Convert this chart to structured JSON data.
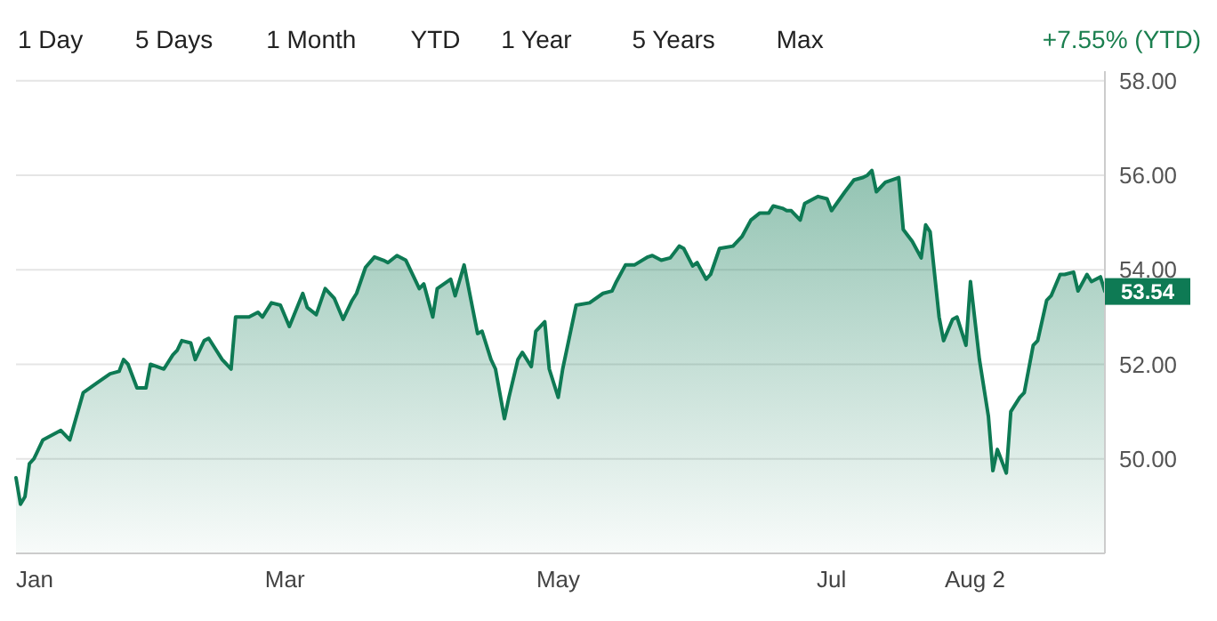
{
  "chart_data": {
    "type": "area",
    "xlim": [
      "--01-01",
      "--08-31"
    ],
    "ylim": [
      48,
      58.2
    ],
    "xticks": [
      {
        "value": "--01-01",
        "label": "Jan"
      },
      {
        "value": "--03-01",
        "label": "Mar"
      },
      {
        "value": "--05-01",
        "label": "May"
      },
      {
        "value": "--07-01",
        "label": "Jul"
      },
      {
        "value": "--08-02",
        "label": "Aug 2"
      }
    ],
    "yticks": [
      {
        "value": 50,
        "label": "50.00"
      },
      {
        "value": 52,
        "label": "52.00"
      },
      {
        "value": 54,
        "label": "54.00"
      },
      {
        "value": 56,
        "label": "56.00"
      },
      {
        "value": 58,
        "label": "58.00"
      }
    ],
    "grid": "y",
    "annotations": [
      "1 Day",
      "5 Days",
      "1 Month",
      "YTD",
      "1 Year",
      "5 Years",
      "Max",
      "+7.55% (YTD)",
      {
        "text": "53.54",
        "x": "--08-31",
        "y": 53.54
      }
    ],
    "series": [
      {
        "color": "#0e7a54",
        "x": [
          "--01-01",
          "--01-02",
          "--01-03",
          "--01-04",
          "--01-05",
          "--01-07",
          "--01-11",
          "--01-13",
          "--01-16",
          "--01-19",
          "--01-22",
          "--01-24",
          "--01-25",
          "--01-26",
          "--01-28",
          "--01-30",
          "--01-31",
          "--02-03",
          "--02-05",
          "--02-06",
          "--02-07",
          "--02-09",
          "--02-10",
          "--02-12",
          "--02-13",
          "--02-16",
          "--02-18",
          "--02-19",
          "--02-22",
          "--02-24",
          "--02-25",
          "--02-27",
          "--02-29",
          "--03-02",
          "--03-05",
          "--03-06",
          "--03-08",
          "--03-10",
          "--03-12",
          "--03-14",
          "--03-16",
          "--03-17",
          "--03-19",
          "--03-21",
          "--03-23",
          "--03-24",
          "--03-26",
          "--03-28",
          "--03-31",
          "--04-01",
          "--04-03",
          "--04-04",
          "--04-07",
          "--04-08",
          "--04-10",
          "--04-13",
          "--04-14",
          "--04-16",
          "--04-17",
          "--04-19",
          "--04-20",
          "--04-22",
          "--04-23",
          "--04-25",
          "--04-26",
          "--04-28",
          "--04-29",
          "--05-01",
          "--05-02",
          "--05-04",
          "--05-05",
          "--05-08",
          "--05-11",
          "--05-13",
          "--05-14",
          "--05-16",
          "--05-18",
          "--05-21",
          "--05-22",
          "--05-24",
          "--05-26",
          "--05-28",
          "--05-29",
          "--05-31",
          "--06-01",
          "--06-03",
          "--06-04",
          "--06-06",
          "--06-09",
          "--06-11",
          "--06-13",
          "--06-15",
          "--06-17",
          "--06-18",
          "--06-20",
          "--06-21",
          "--06-22",
          "--06-24",
          "--06-25",
          "--06-28",
          "--06-30",
          "--07-01",
          "--07-04",
          "--07-06",
          "--07-08",
          "--07-09",
          "--07-10",
          "--07-11",
          "--07-13",
          "--07-16",
          "--07-17",
          "--07-19",
          "--07-21",
          "--07-22",
          "--07-23",
          "--07-25",
          "--07-26",
          "--07-28",
          "--07-29",
          "--07-31",
          "--08-01",
          "--08-03",
          "--08-05",
          "--08-06",
          "--08-07",
          "--08-09",
          "--08-10",
          "--08-12",
          "--08-13",
          "--08-15",
          "--08-16",
          "--08-18",
          "--08-19",
          "--08-21",
          "--08-22",
          "--08-24",
          "--08-25",
          "--08-27",
          "--08-28",
          "--08-30",
          "--08-31"
        ],
        "values": [
          49.6,
          49.04,
          49.2,
          49.9,
          50.0,
          50.4,
          50.6,
          50.4,
          51.4,
          51.6,
          51.8,
          51.85,
          52.1,
          52.0,
          51.5,
          51.5,
          52.0,
          51.9,
          52.2,
          52.3,
          52.5,
          52.45,
          52.1,
          52.5,
          52.55,
          52.1,
          51.9,
          53.0,
          53.0,
          53.1,
          53.0,
          53.3,
          53.25,
          52.8,
          53.5,
          53.2,
          53.05,
          53.6,
          53.4,
          52.95,
          53.35,
          53.5,
          54.05,
          54.27,
          54.2,
          54.15,
          54.3,
          54.2,
          53.6,
          53.7,
          53.0,
          53.6,
          53.8,
          53.45,
          54.1,
          52.65,
          52.7,
          52.1,
          51.9,
          50.85,
          51.3,
          52.1,
          52.25,
          51.95,
          52.7,
          52.9,
          51.9,
          51.3,
          51.9,
          52.8,
          53.25,
          53.3,
          53.5,
          53.55,
          53.75,
          54.1,
          54.1,
          54.27,
          54.3,
          54.2,
          54.25,
          54.5,
          54.45,
          54.08,
          54.15,
          53.8,
          53.9,
          54.45,
          54.5,
          54.7,
          55.05,
          55.2,
          55.2,
          55.35,
          55.3,
          55.25,
          55.25,
          55.05,
          55.4,
          55.55,
          55.5,
          55.25,
          55.65,
          55.9,
          55.95,
          56.0,
          56.1,
          55.65,
          55.85,
          55.95,
          54.85,
          54.6,
          54.25,
          54.95,
          54.8,
          53.0,
          52.5,
          52.95,
          53.0,
          52.4,
          53.75,
          52.1,
          50.9,
          49.75,
          50.2,
          49.7,
          51.0,
          51.3,
          51.4,
          52.4,
          52.5,
          53.35,
          53.45,
          53.9,
          53.9,
          53.95,
          53.55,
          53.9,
          53.75,
          53.85,
          53.54
        ]
      }
    ]
  }
}
